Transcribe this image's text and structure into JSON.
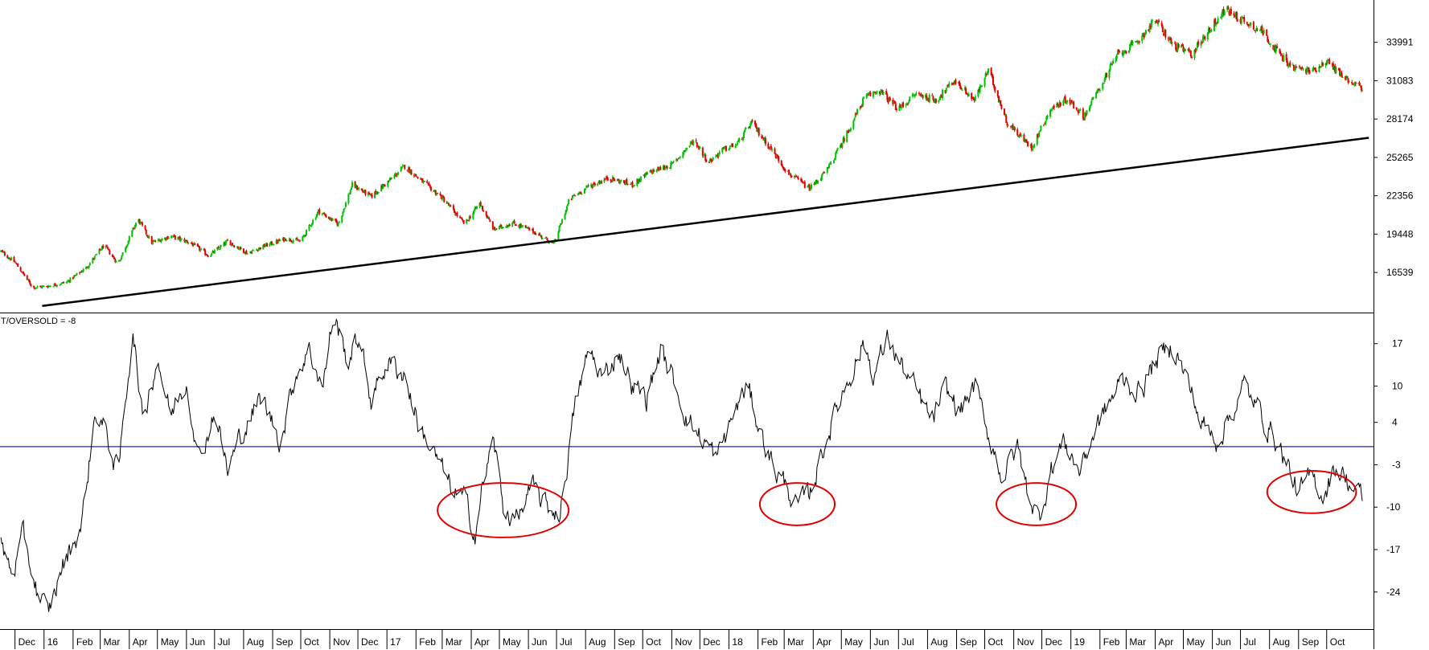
{
  "chart_data": [
    {
      "type": "candlestick",
      "panel": "price",
      "y_axis_side": "right",
      "ylim": [
        13500,
        37200
      ],
      "yticks": [
        16539,
        19448,
        22356,
        25265,
        28174,
        31083,
        33991
      ],
      "up_color": "#00c000",
      "down_color": "#e00000",
      "trendline": {
        "color": "#000000",
        "start": {
          "date": "2015-12-30",
          "value": 14000
        },
        "end": {
          "date": "2019-11-15",
          "value": 26750
        }
      },
      "date_range": [
        "2015-11-15",
        "2019-11-20"
      ],
      "series_anchors": [
        [
          "2015-11-15",
          18200
        ],
        [
          "2015-12-01",
          17300
        ],
        [
          "2015-12-20",
          15400
        ],
        [
          "2016-01-05",
          15500
        ],
        [
          "2016-01-25",
          15800
        ],
        [
          "2016-02-15",
          16900
        ],
        [
          "2016-03-05",
          18600
        ],
        [
          "2016-03-20",
          17200
        ],
        [
          "2016-04-10",
          20600
        ],
        [
          "2016-04-25",
          18800
        ],
        [
          "2016-05-15",
          19300
        ],
        [
          "2016-06-05",
          18800
        ],
        [
          "2016-06-25",
          17800
        ],
        [
          "2016-07-15",
          18900
        ],
        [
          "2016-08-05",
          18000
        ],
        [
          "2016-08-25",
          18600
        ],
        [
          "2016-09-15",
          19100
        ],
        [
          "2016-10-01",
          18900
        ],
        [
          "2016-10-20",
          21200
        ],
        [
          "2016-11-10",
          20200
        ],
        [
          "2016-11-25",
          23200
        ],
        [
          "2016-12-15",
          22300
        ],
        [
          "2017-01-05",
          23600
        ],
        [
          "2017-01-20",
          24600
        ],
        [
          "2017-02-10",
          23300
        ],
        [
          "2017-03-01",
          22200
        ],
        [
          "2017-03-25",
          20200
        ],
        [
          "2017-04-10",
          21800
        ],
        [
          "2017-04-25",
          19800
        ],
        [
          "2017-05-15",
          20300
        ],
        [
          "2017-06-05",
          19700
        ],
        [
          "2017-06-28",
          18700
        ],
        [
          "2017-07-15",
          22100
        ],
        [
          "2017-08-05",
          23100
        ],
        [
          "2017-08-25",
          23700
        ],
        [
          "2017-09-20",
          23200
        ],
        [
          "2017-10-10",
          24200
        ],
        [
          "2017-11-01",
          24700
        ],
        [
          "2017-11-25",
          26600
        ],
        [
          "2017-12-10",
          24900
        ],
        [
          "2017-12-25",
          25800
        ],
        [
          "2018-01-10",
          26300
        ],
        [
          "2018-01-25",
          27900
        ],
        [
          "2018-02-15",
          25900
        ],
        [
          "2018-03-05",
          24100
        ],
        [
          "2018-03-28",
          22900
        ],
        [
          "2018-04-15",
          24200
        ],
        [
          "2018-05-05",
          26800
        ],
        [
          "2018-05-25",
          29700
        ],
        [
          "2018-06-10",
          30400
        ],
        [
          "2018-07-01",
          28900
        ],
        [
          "2018-07-20",
          30100
        ],
        [
          "2018-08-10",
          29600
        ],
        [
          "2018-08-30",
          31100
        ],
        [
          "2018-09-20",
          29600
        ],
        [
          "2018-10-05",
          31900
        ],
        [
          "2018-10-25",
          27900
        ],
        [
          "2018-11-20",
          26000
        ],
        [
          "2018-12-10",
          28900
        ],
        [
          "2018-12-28",
          29700
        ],
        [
          "2019-01-15",
          28400
        ],
        [
          "2019-02-01",
          30600
        ],
        [
          "2019-02-20",
          33100
        ],
        [
          "2019-03-10",
          33800
        ],
        [
          "2019-04-01",
          35700
        ],
        [
          "2019-04-20",
          33800
        ],
        [
          "2019-05-10",
          33100
        ],
        [
          "2019-05-25",
          34600
        ],
        [
          "2019-06-15",
          36500
        ],
        [
          "2019-07-05",
          35600
        ],
        [
          "2019-07-25",
          34800
        ],
        [
          "2019-08-10",
          33200
        ],
        [
          "2019-08-25",
          32100
        ],
        [
          "2019-09-15",
          31800
        ],
        [
          "2019-10-01",
          32600
        ],
        [
          "2019-10-20",
          31300
        ],
        [
          "2019-11-10",
          30500
        ]
      ]
    },
    {
      "type": "line",
      "panel": "oscillator",
      "label": "T/OVERSOLD = -8",
      "y_axis_side": "right",
      "ylim": [
        -30,
        22
      ],
      "yticks": [
        17,
        10,
        4,
        -3,
        -10,
        -17,
        -24
      ],
      "line_color": "#000000",
      "zero_line": {
        "value": 0,
        "color": "#2020c0"
      },
      "highlights": [
        {
          "shape": "ellipse",
          "color": "#e00000",
          "center": [
            "2017-05-05",
            -10.5
          ],
          "x_span_days": 140,
          "y_span": 9
        },
        {
          "shape": "ellipse",
          "color": "#e00000",
          "center": [
            "2018-03-15",
            -9.5
          ],
          "x_span_days": 80,
          "y_span": 7
        },
        {
          "shape": "ellipse",
          "color": "#e00000",
          "center": [
            "2018-11-25",
            -9.5
          ],
          "x_span_days": 85,
          "y_span": 7
        },
        {
          "shape": "ellipse",
          "color": "#e00000",
          "center": [
            "2019-09-15",
            -7.5
          ],
          "x_span_days": 95,
          "y_span": 7
        }
      ],
      "series_anchors": [
        [
          "2015-11-15",
          -16
        ],
        [
          "2015-11-28",
          -21
        ],
        [
          "2015-12-10",
          -15
        ],
        [
          "2015-12-25",
          -24
        ],
        [
          "2016-01-05",
          -28
        ],
        [
          "2016-01-20",
          -20
        ],
        [
          "2016-02-10",
          -13
        ],
        [
          "2016-02-25",
          6
        ],
        [
          "2016-03-10",
          1
        ],
        [
          "2016-03-20",
          -5
        ],
        [
          "2016-04-05",
          20
        ],
        [
          "2016-04-15",
          4
        ],
        [
          "2016-05-01",
          15
        ],
        [
          "2016-05-15",
          5
        ],
        [
          "2016-06-01",
          11
        ],
        [
          "2016-06-15",
          -2
        ],
        [
          "2016-07-01",
          6
        ],
        [
          "2016-07-15",
          -4
        ],
        [
          "2016-08-01",
          3
        ],
        [
          "2016-08-20",
          8
        ],
        [
          "2016-09-10",
          1
        ],
        [
          "2016-09-25",
          12
        ],
        [
          "2016-10-10",
          16
        ],
        [
          "2016-10-25",
          10
        ],
        [
          "2016-11-05",
          22
        ],
        [
          "2016-11-20",
          14
        ],
        [
          "2016-12-01",
          18
        ],
        [
          "2016-12-15",
          8
        ],
        [
          "2017-01-01",
          14
        ],
        [
          "2017-01-20",
          12
        ],
        [
          "2017-02-05",
          3
        ],
        [
          "2017-02-20",
          -1
        ],
        [
          "2017-03-10",
          -7
        ],
        [
          "2017-03-25",
          -9
        ],
        [
          "2017-04-05",
          -14
        ],
        [
          "2017-04-15",
          -5
        ],
        [
          "2017-04-25",
          1
        ],
        [
          "2017-05-05",
          -10
        ],
        [
          "2017-05-20",
          -12
        ],
        [
          "2017-06-05",
          -7
        ],
        [
          "2017-06-20",
          -10
        ],
        [
          "2017-07-05",
          -11
        ],
        [
          "2017-07-20",
          6
        ],
        [
          "2017-08-05",
          16
        ],
        [
          "2017-08-20",
          11
        ],
        [
          "2017-09-05",
          16
        ],
        [
          "2017-09-20",
          10
        ],
        [
          "2017-10-05",
          8
        ],
        [
          "2017-10-20",
          16
        ],
        [
          "2017-11-05",
          10
        ],
        [
          "2017-11-20",
          4
        ],
        [
          "2017-12-05",
          1
        ],
        [
          "2017-12-20",
          -2
        ],
        [
          "2018-01-05",
          5
        ],
        [
          "2018-01-20",
          10
        ],
        [
          "2018-02-05",
          2
        ],
        [
          "2018-02-20",
          -4
        ],
        [
          "2018-03-05",
          -7
        ],
        [
          "2018-03-15",
          -10
        ],
        [
          "2018-03-28",
          -8
        ],
        [
          "2018-04-10",
          -1
        ],
        [
          "2018-04-25",
          6
        ],
        [
          "2018-05-10",
          12
        ],
        [
          "2018-05-25",
          17
        ],
        [
          "2018-06-05",
          12
        ],
        [
          "2018-06-20",
          18
        ],
        [
          "2018-07-05",
          13
        ],
        [
          "2018-07-20",
          9
        ],
        [
          "2018-08-05",
          4
        ],
        [
          "2018-08-20",
          9
        ],
        [
          "2018-09-05",
          6
        ],
        [
          "2018-09-20",
          10
        ],
        [
          "2018-10-05",
          2
        ],
        [
          "2018-10-20",
          -5
        ],
        [
          "2018-11-05",
          0
        ],
        [
          "2018-11-15",
          -7
        ],
        [
          "2018-11-28",
          -12
        ],
        [
          "2018-12-10",
          -4
        ],
        [
          "2018-12-25",
          1
        ],
        [
          "2019-01-10",
          -4
        ],
        [
          "2019-01-25",
          2
        ],
        [
          "2019-02-10",
          7
        ],
        [
          "2019-02-25",
          11
        ],
        [
          "2019-03-15",
          9
        ],
        [
          "2019-04-01",
          14
        ],
        [
          "2019-04-20",
          17
        ],
        [
          "2019-05-05",
          11
        ],
        [
          "2019-05-20",
          4
        ],
        [
          "2019-06-05",
          1
        ],
        [
          "2019-06-20",
          5
        ],
        [
          "2019-07-05",
          10
        ],
        [
          "2019-07-20",
          6
        ],
        [
          "2019-08-05",
          2
        ],
        [
          "2019-08-20",
          -3
        ],
        [
          "2019-09-01",
          -8
        ],
        [
          "2019-09-15",
          -5
        ],
        [
          "2019-09-28",
          -8
        ],
        [
          "2019-10-10",
          -3
        ],
        [
          "2019-10-25",
          -6
        ],
        [
          "2019-11-10",
          -9
        ]
      ]
    }
  ],
  "x_axis": {
    "month_labels": [
      {
        "text": "Dec",
        "date": "2015-12-01"
      },
      {
        "text": "16",
        "date": "2016-01-01"
      },
      {
        "text": "Feb",
        "date": "2016-02-01"
      },
      {
        "text": "Mar",
        "date": "2016-03-01"
      },
      {
        "text": "Apr",
        "date": "2016-04-01"
      },
      {
        "text": "May",
        "date": "2016-05-01"
      },
      {
        "text": "Jun",
        "date": "2016-06-01"
      },
      {
        "text": "Jul",
        "date": "2016-07-01"
      },
      {
        "text": "Aug",
        "date": "2016-08-01"
      },
      {
        "text": "Sep",
        "date": "2016-09-01"
      },
      {
        "text": "Oct",
        "date": "2016-10-01"
      },
      {
        "text": "Nov",
        "date": "2016-11-01"
      },
      {
        "text": "Dec",
        "date": "2016-12-01"
      },
      {
        "text": "17",
        "date": "2017-01-01"
      },
      {
        "text": "Feb",
        "date": "2017-02-01"
      },
      {
        "text": "Mar",
        "date": "2017-03-01"
      },
      {
        "text": "Apr",
        "date": "2017-04-01"
      },
      {
        "text": "May",
        "date": "2017-05-01"
      },
      {
        "text": "Jun",
        "date": "2017-06-01"
      },
      {
        "text": "Jul",
        "date": "2017-07-01"
      },
      {
        "text": "Aug",
        "date": "2017-08-01"
      },
      {
        "text": "Sep",
        "date": "2017-09-01"
      },
      {
        "text": "Oct",
        "date": "2017-10-01"
      },
      {
        "text": "Nov",
        "date": "2017-11-01"
      },
      {
        "text": "Dec",
        "date": "2017-12-01"
      },
      {
        "text": "18",
        "date": "2018-01-01"
      },
      {
        "text": "Feb",
        "date": "2018-02-01"
      },
      {
        "text": "Mar",
        "date": "2018-03-01"
      },
      {
        "text": "Apr",
        "date": "2018-04-01"
      },
      {
        "text": "May",
        "date": "2018-05-01"
      },
      {
        "text": "Jun",
        "date": "2018-06-01"
      },
      {
        "text": "Jul",
        "date": "2018-07-01"
      },
      {
        "text": "Aug",
        "date": "2018-08-01"
      },
      {
        "text": "Sep",
        "date": "2018-09-01"
      },
      {
        "text": "Oct",
        "date": "2018-10-01"
      },
      {
        "text": "Nov",
        "date": "2018-11-01"
      },
      {
        "text": "Dec",
        "date": "2018-12-01"
      },
      {
        "text": "19",
        "date": "2019-01-01"
      },
      {
        "text": "Feb",
        "date": "2019-02-01"
      },
      {
        "text": "Mar",
        "date": "2019-03-01"
      },
      {
        "text": "Apr",
        "date": "2019-04-01"
      },
      {
        "text": "May",
        "date": "2019-05-01"
      },
      {
        "text": "Jun",
        "date": "2019-06-01"
      },
      {
        "text": "Jul",
        "date": "2019-07-01"
      },
      {
        "text": "Aug",
        "date": "2019-08-01"
      },
      {
        "text": "Sep",
        "date": "2019-09-01"
      },
      {
        "text": "Oct",
        "date": "2019-10-01"
      }
    ]
  }
}
